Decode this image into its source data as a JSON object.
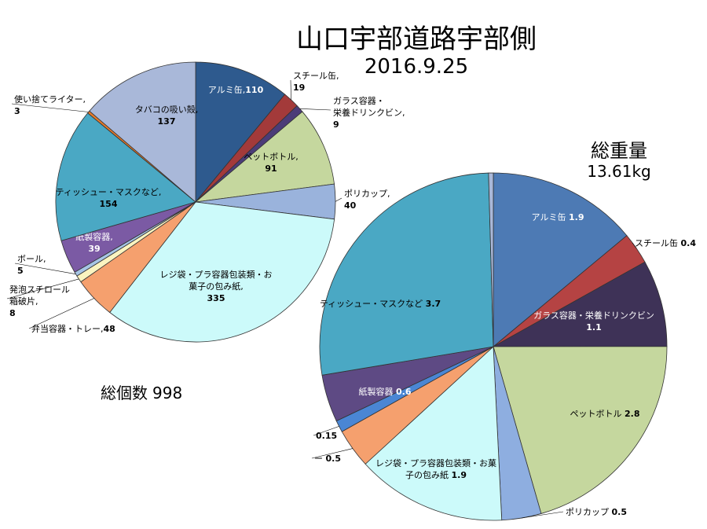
{
  "title": "山口宇部道路宇部側",
  "date": "2016.9.25",
  "total_weight": {
    "label": "総重量",
    "value": "13.61kg"
  },
  "total_count": {
    "label": "総個数",
    "value": "998"
  },
  "chart_data": [
    {
      "type": "pie",
      "name": "count",
      "slices": [
        {
          "label": "アルミ缶",
          "value": 110,
          "color": "#2e5a8e"
        },
        {
          "label": "スチール缶",
          "value": 19,
          "color": "#a33a3a"
        },
        {
          "label": "ガラス容器・栄養ドリンクビン",
          "value": 9,
          "color": "#4b3c78"
        },
        {
          "label": "ペットボトル",
          "value": 91,
          "color": "#c5d79e"
        },
        {
          "label": "ポリカップ",
          "value": 40,
          "color": "#9ab3dc"
        },
        {
          "label": "レジ袋・プラ容器包装類・お菓子の包み紙",
          "value": 335,
          "color": "#ccfafa"
        },
        {
          "label": "弁当容器・トレー",
          "value": 48,
          "color": "#f5a06e"
        },
        {
          "label": "発泡スチロール箱破片",
          "value": 8,
          "color": "#fbf4c0"
        },
        {
          "label": "ボール",
          "value": 5,
          "color": "#a7c5e6"
        },
        {
          "label": "紙製容器",
          "value": 39,
          "color": "#7b5aa4"
        },
        {
          "label": "ティッシュー・マスクなど",
          "value": 154,
          "color": "#4aa8c4"
        },
        {
          "label": "使い捨てライター",
          "value": 3,
          "color": "#e87a2a"
        },
        {
          "label": "タバコの吸い殻",
          "value": 137,
          "color": "#a9b8d9"
        }
      ]
    },
    {
      "type": "pie",
      "name": "weight",
      "slices": [
        {
          "label": "アルミ缶",
          "value": 1.9,
          "color": "#4d7ab4"
        },
        {
          "label": "スチール缶",
          "value": 0.4,
          "color": "#b54343"
        },
        {
          "label": "ガラス容器・栄養ドリンクビン",
          "value": 1.1,
          "color": "#3e3257"
        },
        {
          "label": "ペットボトル",
          "value": 2.8,
          "color": "#c5d79e"
        },
        {
          "label": "ポリカップ",
          "value": 0.5,
          "color": "#8eaee0"
        },
        {
          "label": "レジ袋・プラ容器包装類・お菓子の包み紙",
          "value": 1.9,
          "color": "#ccfafa"
        },
        {
          "label": "ー",
          "value": 0.5,
          "color": "#f5a06e"
        },
        {
          "label": "",
          "value": 0.15,
          "color": "#4a86d4"
        },
        {
          "label": "紙製容器",
          "value": 0.6,
          "color": "#5e4a84"
        },
        {
          "label": "ティッシュー・マスクなど",
          "value": 3.7,
          "color": "#4aa8c4"
        },
        {
          "label": "",
          "value": 0.06,
          "color": "#a9b8d9"
        }
      ]
    }
  ]
}
